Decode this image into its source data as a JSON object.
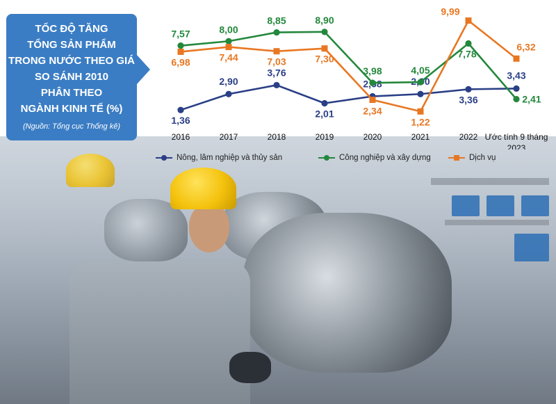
{
  "title_lines": [
    "TỐC ĐỘ TĂNG",
    "TỔNG SẢN PHẨM",
    "TRONG NƯỚC THEO GIÁ",
    "SO SÁNH 2010",
    "PHÂN THEO",
    "NGÀNH KINH TẾ (%)"
  ],
  "source": "(Nguồn: Tổng cục Thống kê)",
  "colors": {
    "title_box": "#3b7dc4",
    "agriculture": "#2a3f86",
    "industry": "#23883c",
    "services": "#e87722"
  },
  "chart_data": {
    "type": "line",
    "categories": [
      "2016",
      "2017",
      "2018",
      "2019",
      "2020",
      "2021",
      "2022",
      "Ước tính 9 tháng 2023"
    ],
    "category_lines": [
      [
        "2016"
      ],
      [
        "2017"
      ],
      [
        "2018"
      ],
      [
        "2019"
      ],
      [
        "2020"
      ],
      [
        "2021"
      ],
      [
        "2022"
      ],
      [
        "Ước tính 9 tháng",
        "2023"
      ]
    ],
    "series": [
      {
        "key": "agriculture",
        "name": "Nông, lâm nghiệp và thủy sản",
        "color": "#2a3f86",
        "marker": "circle",
        "values": [
          1.36,
          2.9,
          3.76,
          2.01,
          2.68,
          2.9,
          3.36,
          3.43
        ],
        "labels": [
          "1,36",
          "2,90",
          "3,76",
          "2,01",
          "2,68",
          "2,90",
          "3,36",
          "3,43"
        ]
      },
      {
        "key": "industry",
        "name": "Công nghiệp và xây dựng",
        "color": "#23883c",
        "marker": "circle",
        "values": [
          7.57,
          8.0,
          8.85,
          8.9,
          3.98,
          4.05,
          7.78,
          2.41
        ],
        "labels": [
          "7,57",
          "8,00",
          "8,85",
          "8,90",
          "3,98",
          "4,05",
          "7,78",
          "2,41"
        ]
      },
      {
        "key": "services",
        "name": "Dịch vụ",
        "color": "#e87722",
        "marker": "square",
        "values": [
          6.98,
          7.44,
          7.03,
          7.3,
          2.34,
          1.22,
          9.99,
          6.32
        ],
        "labels": [
          "6,98",
          "7,44",
          "7,03",
          "7,30",
          "2,34",
          "1,22",
          "9,99",
          "6,32"
        ]
      }
    ],
    "ylim": [
      0.5,
      10.5
    ],
    "grid": false,
    "legend_position": "bottom"
  }
}
